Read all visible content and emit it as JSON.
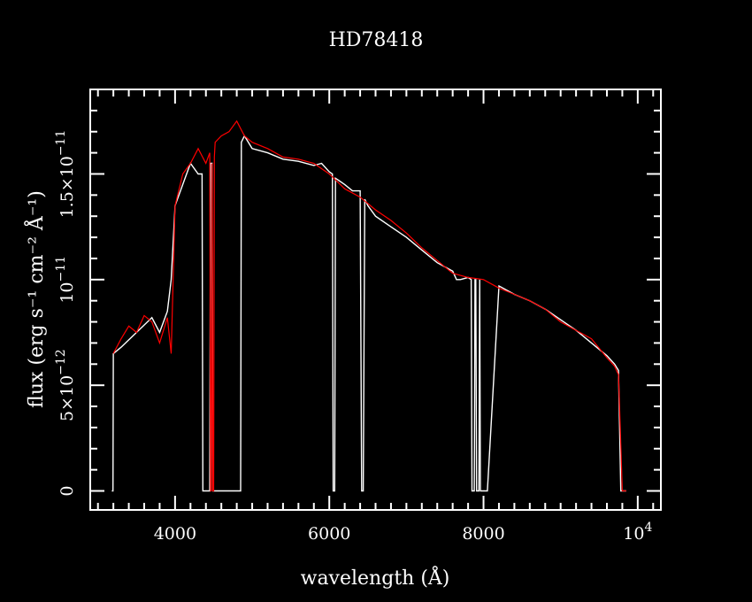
{
  "chart_data": {
    "type": "line",
    "title": "HD78418",
    "xlabel": "wavelength (Å)",
    "ylabel": "flux (erg s⁻¹ cm⁻² Å⁻¹)",
    "xlim": [
      2900,
      10300
    ],
    "ylim": [
      -9e-13,
      1.9e-11
    ],
    "x_ticks": [
      {
        "value": 4000,
        "label": "4000"
      },
      {
        "value": 6000,
        "label": "6000"
      },
      {
        "value": 8000,
        "label": "8000"
      },
      {
        "value": 10000,
        "label": "10",
        "exp": "4"
      }
    ],
    "y_ticks": [
      {
        "value": 0,
        "label": "0",
        "exp": ""
      },
      {
        "value": 5e-12,
        "label": "5×10",
        "exp": "−12"
      },
      {
        "value": 1e-11,
        "label": "10",
        "exp": "−11"
      },
      {
        "value": 1.5e-11,
        "label": "1.5×10",
        "exp": "−11"
      }
    ],
    "grid": false,
    "colors": {
      "background": "#000000",
      "axes": "#ffffff",
      "series_a": "#ffffff",
      "series_b": "#ff0000"
    },
    "series": [
      {
        "color": "#ffffff",
        "x": [
          3180,
          3195,
          3200,
          3300,
          3500,
          3700,
          3800,
          3900,
          3950,
          4000,
          4100,
          4200,
          4300,
          4350,
          4360,
          4450,
          4460,
          4480,
          4490,
          4500,
          4600,
          4700,
          4800,
          4850,
          4860,
          4900,
          5000,
          5200,
          5400,
          5600,
          5800,
          5900,
          6000,
          6040,
          6050,
          6060,
          6070,
          6080,
          6200,
          6300,
          6400,
          6420,
          6430,
          6440,
          6460,
          6500,
          6600,
          6800,
          7000,
          7200,
          7400,
          7600,
          7650,
          7700,
          7800,
          7840,
          7850,
          7860,
          7870,
          7880,
          7890,
          7900,
          7910,
          7920,
          7930,
          7940,
          7950,
          7960,
          8050,
          8200,
          8400,
          8600,
          8800,
          9000,
          9200,
          9400,
          9600,
          9700,
          9750,
          9780,
          9800,
          9850
        ],
        "y": [
          0,
          0,
          6.5e-12,
          6.8e-12,
          7.5e-12,
          8.2e-12,
          7.5e-12,
          8.5e-12,
          1e-11,
          1.35e-11,
          1.45e-11,
          1.55e-11,
          1.5e-11,
          1.5e-11,
          0,
          0,
          1.55e-11,
          1.55e-11,
          0,
          0,
          0,
          0,
          0,
          0,
          1.65e-11,
          1.68e-11,
          1.62e-11,
          1.6e-11,
          1.57e-11,
          1.56e-11,
          1.54e-11,
          1.55e-11,
          1.51e-11,
          1.5e-11,
          0,
          0,
          0,
          1.48e-11,
          1.45e-11,
          1.42e-11,
          1.42e-11,
          0,
          0,
          0,
          1.38e-11,
          1.35e-11,
          1.3e-11,
          1.25e-11,
          1.2e-11,
          1.14e-11,
          1.08e-11,
          1.04e-11,
          1e-11,
          1e-11,
          1.01e-11,
          1e-11,
          0,
          0,
          0,
          0,
          1e-11,
          1e-11,
          0,
          0,
          0,
          0,
          1e-11,
          0,
          0,
          9.7e-12,
          9.3e-12,
          9e-12,
          8.6e-12,
          8.1e-12,
          7.6e-12,
          7e-12,
          6.4e-12,
          6e-12,
          5.7e-12,
          0,
          0,
          0
        ]
      },
      {
        "color": "#ff0000",
        "x": [
          3200,
          3300,
          3400,
          3500,
          3600,
          3700,
          3800,
          3900,
          3950,
          4000,
          4100,
          4200,
          4300,
          4400,
          4450,
          4460,
          4470,
          4480,
          4490,
          4500,
          4510,
          4520,
          4600,
          4700,
          4800,
          4900,
          5000,
          5200,
          5400,
          5600,
          5800,
          6000,
          6200,
          6400,
          6600,
          6800,
          7000,
          7200,
          7400,
          7600,
          7800,
          8000,
          8200,
          8400,
          8600,
          8800,
          9000,
          9200,
          9400,
          9600,
          9700,
          9750,
          9800,
          9850
        ],
        "y": [
          6.5e-12,
          7.2e-12,
          7.8e-12,
          7.5e-12,
          8.3e-12,
          8e-12,
          7e-12,
          8.2e-12,
          6.5e-12,
          1.35e-11,
          1.5e-11,
          1.55e-11,
          1.62e-11,
          1.55e-11,
          1.6e-11,
          0,
          0,
          1.55e-11,
          0,
          0,
          1.58e-11,
          1.65e-11,
          1.68e-11,
          1.7e-11,
          1.75e-11,
          1.68e-11,
          1.65e-11,
          1.62e-11,
          1.58e-11,
          1.57e-11,
          1.55e-11,
          1.5e-11,
          1.43e-11,
          1.39e-11,
          1.33e-11,
          1.28e-11,
          1.22e-11,
          1.15e-11,
          1.09e-11,
          1.03e-11,
          1.01e-11,
          1e-11,
          9.6e-12,
          9.3e-12,
          9e-12,
          8.6e-12,
          8e-12,
          7.6e-12,
          7.2e-12,
          6.3e-12,
          5.9e-12,
          5.5e-12,
          0,
          0
        ]
      }
    ]
  }
}
